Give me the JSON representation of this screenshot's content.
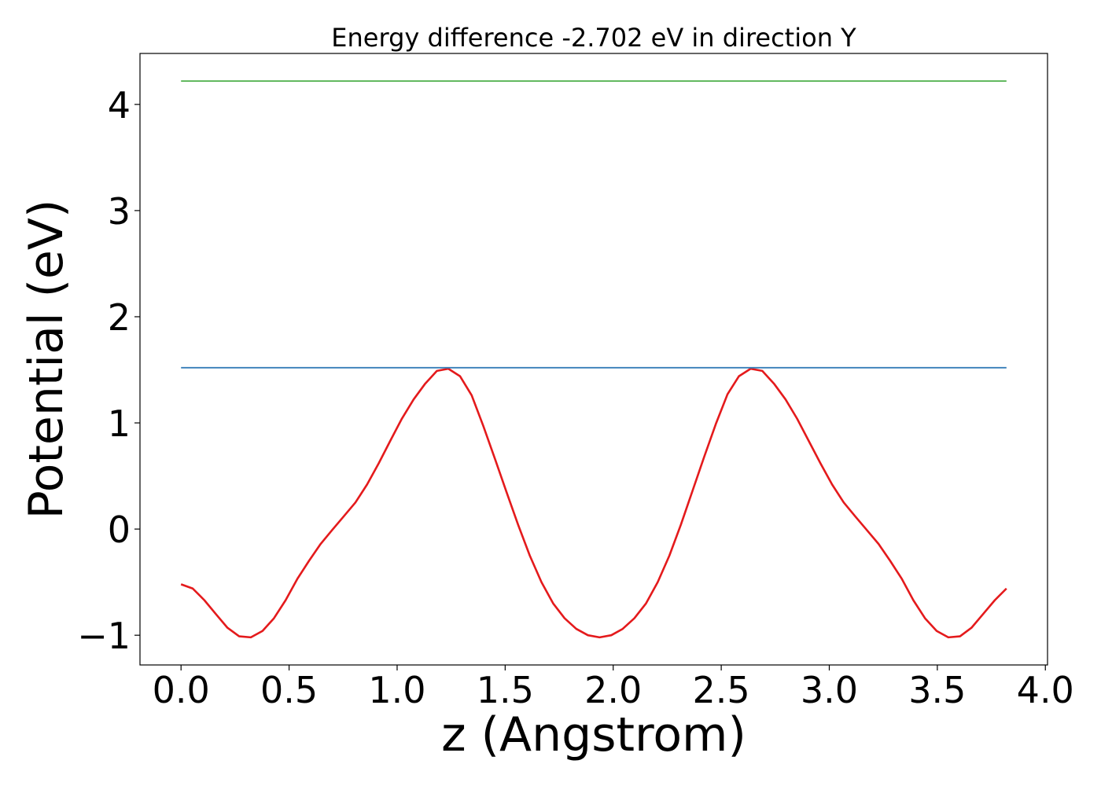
{
  "chart_data": {
    "type": "line",
    "title": "Energy difference -2.702 eV in direction Y",
    "xlabel": "z (Angstrom)",
    "ylabel": "Potential (eV)",
    "xlim": [
      -0.19,
      4.01
    ],
    "ylim": [
      -1.28,
      4.48
    ],
    "xticks": [
      {
        "value": 0,
        "label": "0.0"
      },
      {
        "value": 0.5,
        "label": "0.5"
      },
      {
        "value": 1,
        "label": "1.0"
      },
      {
        "value": 1.5,
        "label": "1.5"
      },
      {
        "value": 2,
        "label": "2.0"
      },
      {
        "value": 2.5,
        "label": "2.5"
      },
      {
        "value": 3,
        "label": "3.0"
      },
      {
        "value": 3.5,
        "label": "3.5"
      },
      {
        "value": 4,
        "label": "4.0"
      }
    ],
    "yticks": [
      {
        "value": -1,
        "label": "−1"
      },
      0,
      1,
      2,
      3,
      4
    ],
    "grid": false,
    "series": [
      {
        "color": "#e41a1c",
        "x": [
          0,
          0.054,
          0.108,
          0.161,
          0.215,
          0.269,
          0.323,
          0.377,
          0.43,
          0.484,
          0.538,
          0.592,
          0.646,
          0.699,
          0.753,
          0.807,
          0.861,
          0.915,
          0.968,
          1.022,
          1.076,
          1.13,
          1.184,
          1.237,
          1.291,
          1.345,
          1.399,
          1.453,
          1.506,
          1.56,
          1.614,
          1.668,
          1.722,
          1.775,
          1.829,
          1.883,
          1.937,
          1.991,
          2.044,
          2.098,
          2.152,
          2.206,
          2.26,
          2.313,
          2.367,
          2.421,
          2.475,
          2.529,
          2.582,
          2.636,
          2.69,
          2.744,
          2.798,
          2.851,
          2.905,
          2.959,
          3.013,
          3.067,
          3.12,
          3.174,
          3.228,
          3.282,
          3.336,
          3.389,
          3.443,
          3.497,
          3.551,
          3.605,
          3.658,
          3.712,
          3.766,
          3.82
        ],
        "values": [
          -0.52,
          -0.56,
          -0.67,
          -0.8,
          -0.93,
          -1.01,
          -1.02,
          -0.96,
          -0.84,
          -0.67,
          -0.47,
          -0.3,
          -0.14,
          -0.01,
          0.12,
          0.25,
          0.42,
          0.62,
          0.83,
          1.04,
          1.22,
          1.37,
          1.49,
          1.51,
          1.44,
          1.26,
          0.97,
          0.66,
          0.35,
          0.04,
          -0.25,
          -0.5,
          -0.7,
          -0.84,
          -0.94,
          -1.0,
          -1.02,
          -1.0,
          -0.94,
          -0.84,
          -0.7,
          -0.5,
          -0.25,
          0.04,
          0.36,
          0.68,
          0.99,
          1.27,
          1.44,
          1.51,
          1.49,
          1.37,
          1.22,
          1.04,
          0.83,
          0.62,
          0.42,
          0.25,
          0.12,
          -0.01,
          -0.14,
          -0.3,
          -0.47,
          -0.67,
          -0.84,
          -0.96,
          -1.02,
          -1.01,
          -0.93,
          -0.8,
          -0.67,
          -0.56
        ]
      },
      {
        "color": "#377eb8",
        "x": [
          0,
          3.82
        ],
        "values": [
          1.52,
          1.52
        ]
      },
      {
        "color": "#4daf4a",
        "x": [
          0,
          3.82
        ],
        "values": [
          4.22,
          4.22
        ]
      }
    ]
  }
}
